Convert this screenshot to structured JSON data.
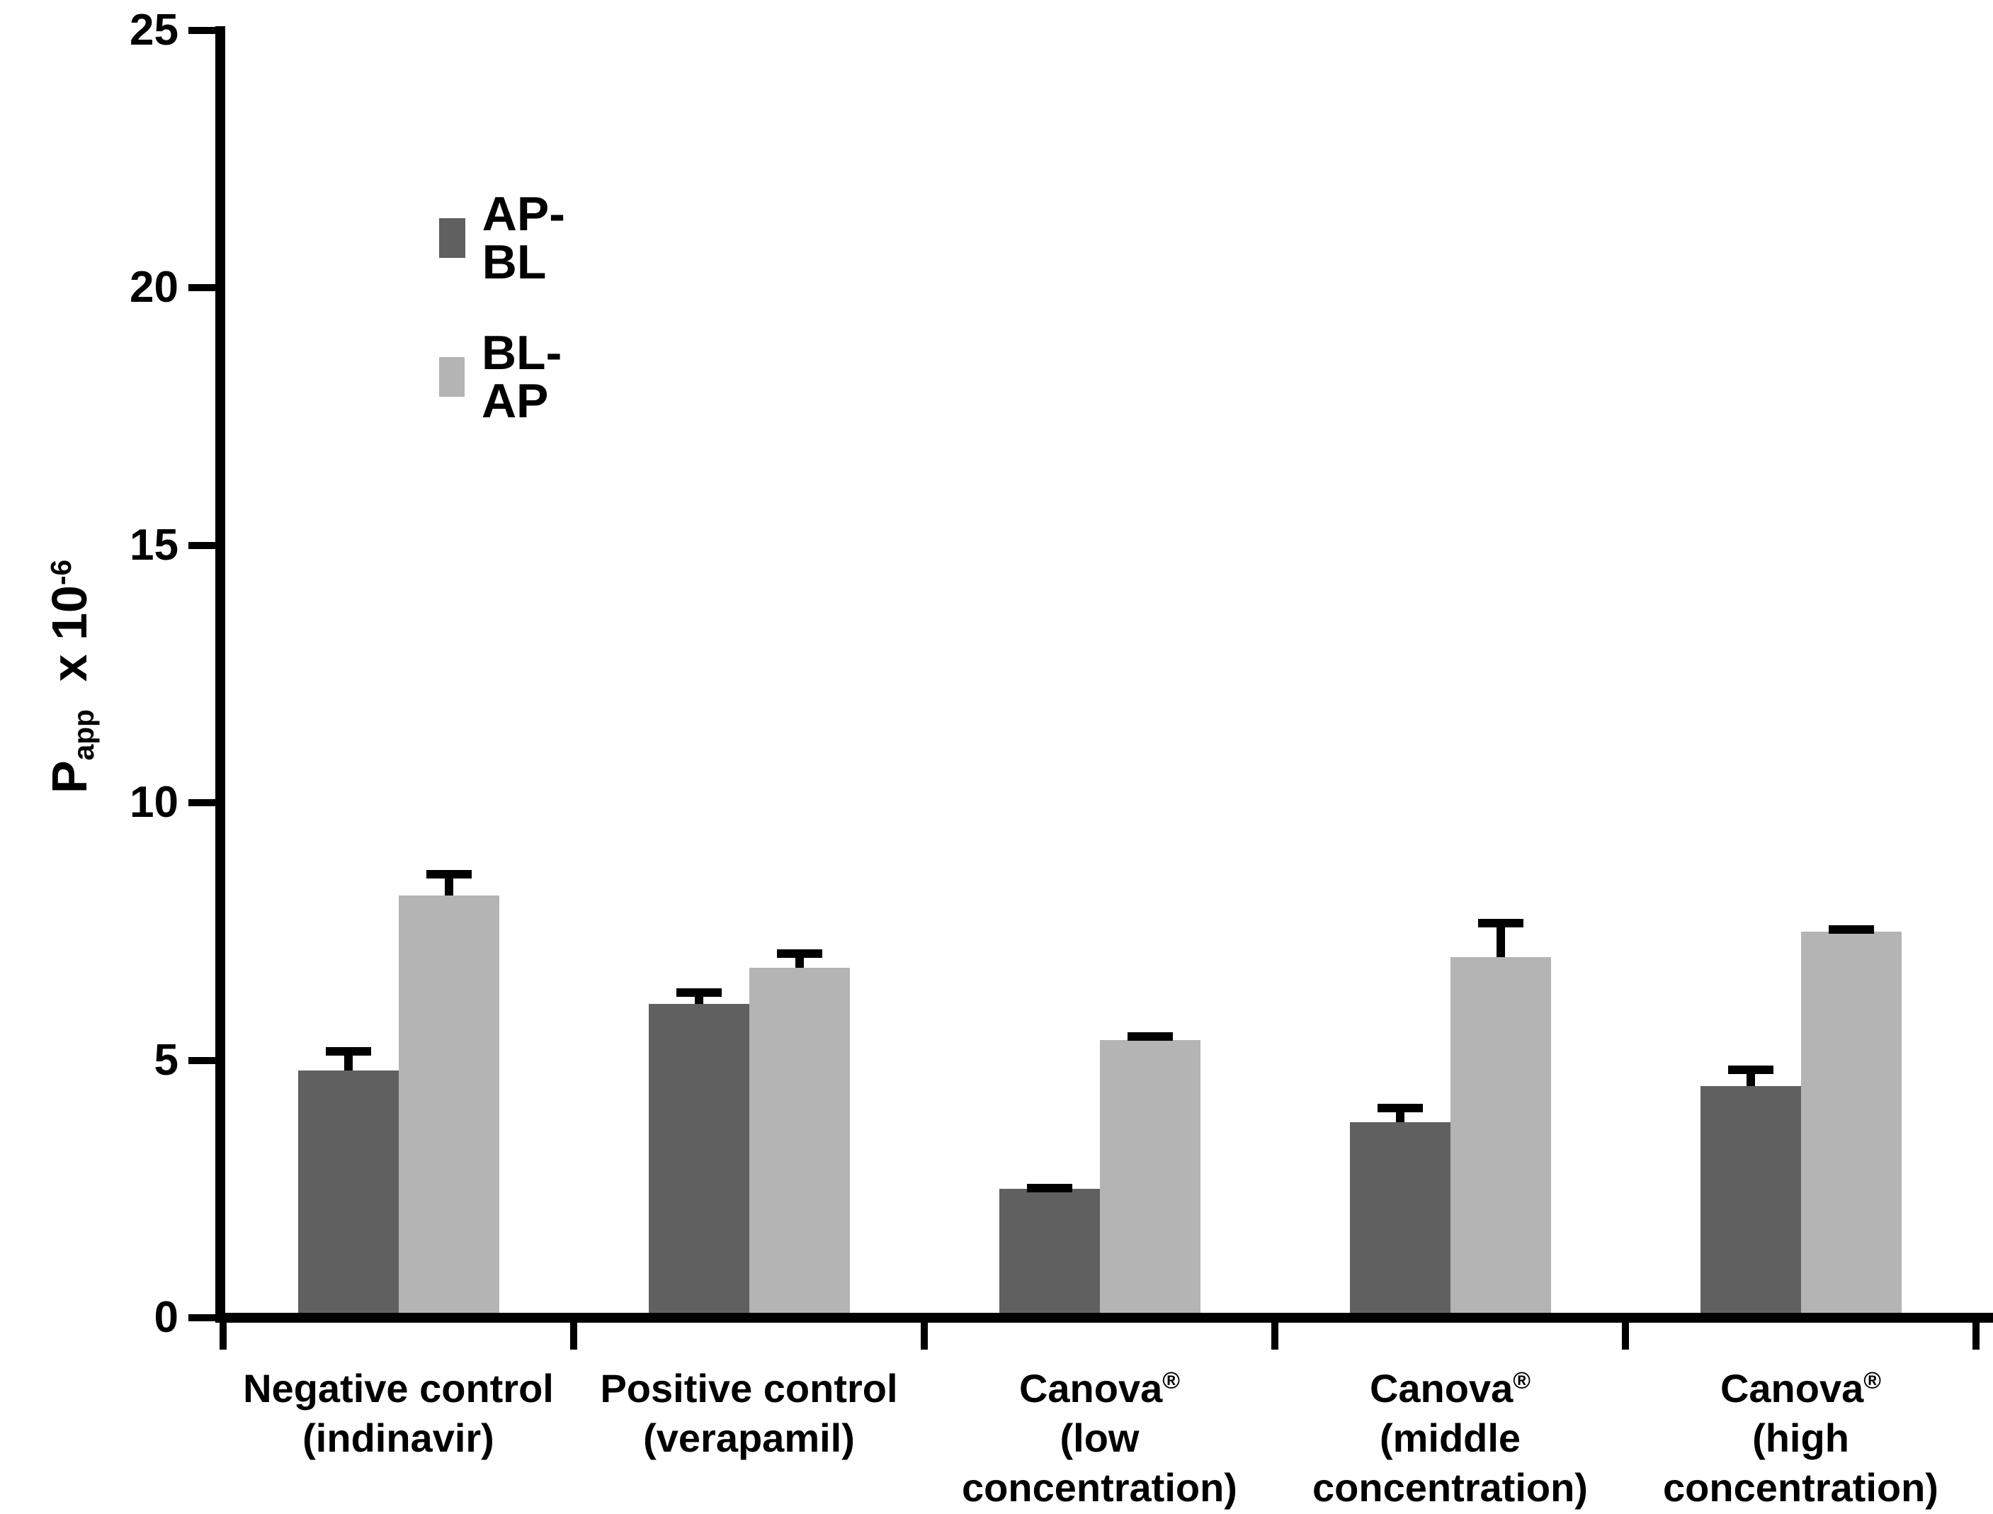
{
  "chart_data": {
    "type": "bar",
    "title": "",
    "ylabel_parts": {
      "base": "P",
      "sub": "app",
      "mul": "  x 10",
      "sup": "-6"
    },
    "ylim": [
      0,
      25
    ],
    "yticks": [
      0,
      5,
      10,
      15,
      20,
      25
    ],
    "grid": false,
    "legend_position": "top-left-inside",
    "categories": [
      [
        "Negative control",
        "(indinavir)"
      ],
      [
        "Positive control",
        "(verapamil)"
      ],
      [
        "Canova®",
        "(low",
        "concentration)"
      ],
      [
        "Canova®",
        "(middle",
        "concentration)"
      ],
      [
        "Canova®",
        "(high",
        "concentration)"
      ]
    ],
    "series": [
      {
        "name": "AP-BL",
        "color": "#606060",
        "values": [
          4.8,
          6.1,
          2.5,
          3.8,
          4.5
        ],
        "errors": [
          0.45,
          0.3,
          0.1,
          0.35,
          0.4
        ]
      },
      {
        "name": "BL-AP",
        "color": "#b4b4b4",
        "values": [
          8.2,
          6.8,
          5.4,
          7.0,
          7.5
        ],
        "errors": [
          0.5,
          0.35,
          0.15,
          0.75,
          0.12
        ]
      }
    ]
  },
  "legend": {
    "items": [
      {
        "label": "AP-BL",
        "color": "#606060"
      },
      {
        "label": "BL-AP",
        "color": "#b4b4b4"
      }
    ]
  },
  "axis_color": "#000000"
}
